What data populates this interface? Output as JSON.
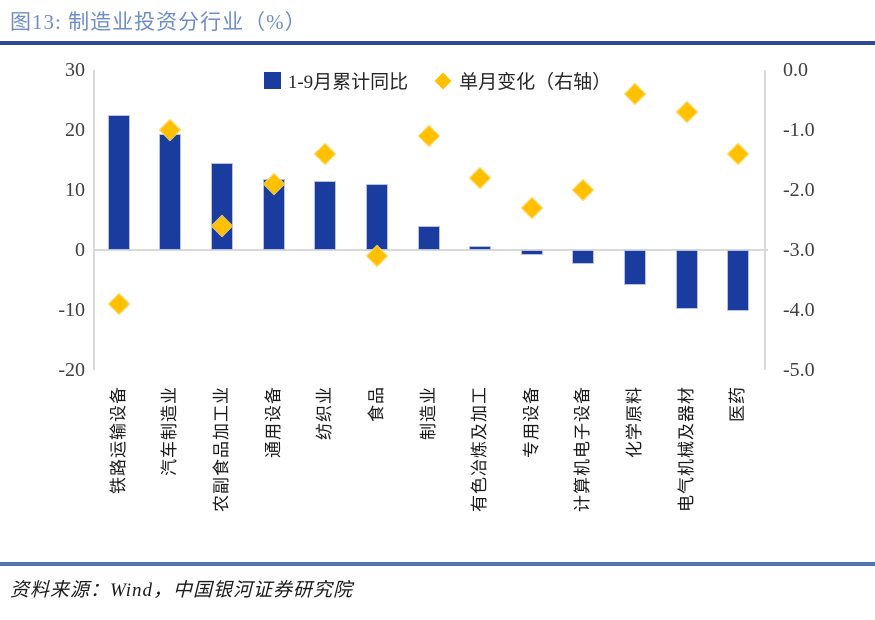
{
  "header": {
    "title": "图13: 制造业投资分行业（%）"
  },
  "chart_data": {
    "type": "bar",
    "subtype": "combo-bar-plus-diamond-scatter",
    "title": "制造业投资分行业（%）",
    "categories": [
      "铁路运输设备",
      "汽车制造业",
      "农副食品加工业",
      "通用设备",
      "纺织业",
      "食品",
      "制造业",
      "有色冶炼及加工",
      "专用设备",
      "计算机电子设备",
      "化学原料",
      "电气机械及器材",
      "医药"
    ],
    "series": [
      {
        "name": "1-9月累计同比",
        "type": "bar",
        "axis": "left",
        "color": "#1A3C9E",
        "values": [
          22.5,
          19.4,
          14.5,
          11.8,
          11.5,
          11.0,
          4.0,
          0.6,
          -0.9,
          -2.4,
          -5.8,
          -9.8,
          -10.1
        ]
      },
      {
        "name": "单月变化（右轴）",
        "type": "scatter",
        "marker": "diamond",
        "axis": "right",
        "color": "#FFC000",
        "values": [
          -3.9,
          -1.0,
          -2.6,
          -1.9,
          -1.4,
          -3.1,
          -1.1,
          -1.8,
          -2.3,
          -2.0,
          -0.4,
          -0.7,
          -1.4
        ]
      }
    ],
    "left_axis": {
      "ticks": [
        "30",
        "20",
        "10",
        "0",
        "-10",
        "-20"
      ],
      "max": 30,
      "min": -20
    },
    "right_axis": {
      "ticks": [
        "0.0",
        "-1.0",
        "-2.0",
        "-3.0",
        "-4.0",
        "-5.0"
      ],
      "max": 0,
      "min": -5
    },
    "legend_position": "top-center",
    "grid": "zero-line-only",
    "xlabel": "",
    "ylabel": ""
  },
  "footer": {
    "source": "资料来源：Wind，中国银河证券研究院"
  },
  "colors": {
    "title_text": "#6D8DC8",
    "title_rule": "#2C4A96",
    "source_rule": "#4F74AE",
    "bar": "#1A3C9E",
    "diamond": "#FFC000",
    "axis_line": "#D9D9D9",
    "tick_text": "#3F3F3F"
  }
}
